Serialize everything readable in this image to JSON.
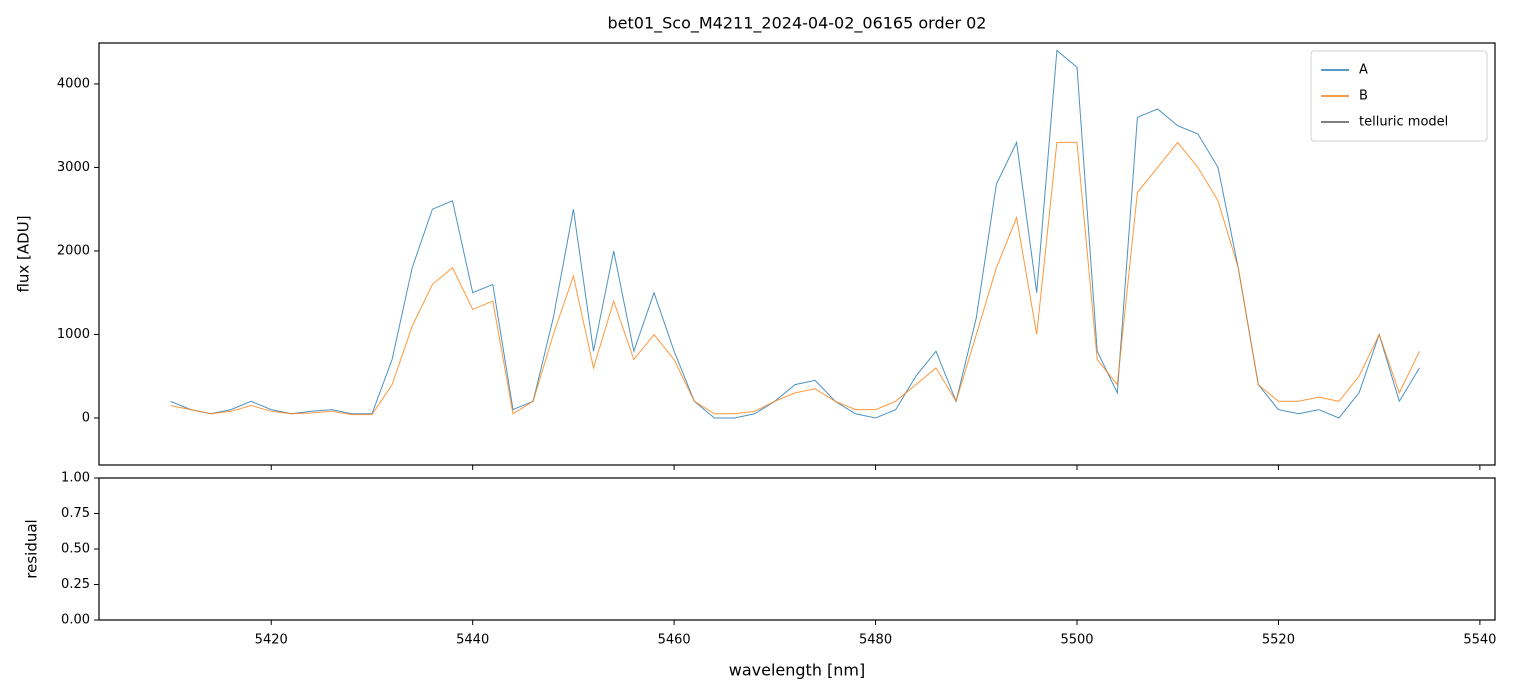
{
  "chart_data": [
    {
      "type": "line",
      "title": "bet01_Sco_M4211_2024-04-02_06165  order 02",
      "ylabel": "flux [ADU]",
      "xlim": [
        5402.9,
        5541.5
      ],
      "ylim": [
        -563,
        4490
      ],
      "yticks": [
        0,
        1000,
        2000,
        3000,
        4000
      ],
      "legend": "upper right",
      "x": [
        5410,
        5412,
        5414,
        5416,
        5418,
        5420,
        5422,
        5424,
        5426,
        5428,
        5430,
        5432,
        5434,
        5436,
        5438,
        5440,
        5442,
        5444,
        5446,
        5448,
        5450,
        5452,
        5454,
        5456,
        5458,
        5460,
        5462,
        5464,
        5466,
        5468,
        5470,
        5472,
        5474,
        5476,
        5478,
        5480,
        5482,
        5484,
        5486,
        5488,
        5490,
        5492,
        5494,
        5496,
        5498,
        5500,
        5502,
        5504,
        5506,
        5508,
        5510,
        5512,
        5514,
        5516,
        5518,
        5520,
        5522,
        5524,
        5526,
        5528,
        5530,
        5532,
        5534
      ],
      "series": [
        {
          "name": "A",
          "color": "#1f77b4",
          "values": [
            200,
            100,
            50,
            100,
            200,
            100,
            50,
            80,
            100,
            50,
            50,
            700,
            1800,
            2500,
            2600,
            1500,
            1600,
            100,
            200,
            1200,
            2500,
            800,
            2000,
            800,
            1500,
            800,
            200,
            0,
            0,
            50,
            200,
            400,
            450,
            200,
            50,
            0,
            100,
            500,
            800,
            200,
            1200,
            2800,
            3300,
            1500,
            4400,
            4200,
            800,
            300,
            3600,
            3700,
            3500,
            3400,
            3000,
            1800,
            400,
            100,
            50,
            100,
            0,
            300,
            1000,
            200,
            600
          ]
        },
        {
          "name": "B",
          "color": "#ff7f0e",
          "values": [
            150,
            100,
            50,
            80,
            150,
            80,
            50,
            60,
            80,
            40,
            40,
            400,
            1100,
            1600,
            1800,
            1300,
            1400,
            50,
            200,
            1000,
            1700,
            600,
            1400,
            700,
            1000,
            700,
            200,
            50,
            50,
            80,
            200,
            300,
            350,
            200,
            100,
            100,
            200,
            400,
            600,
            200,
            1000,
            1800,
            2400,
            1000,
            3300,
            3300,
            700,
            400,
            2700,
            3000,
            3300,
            3000,
            2600,
            1800,
            400,
            200,
            200,
            250,
            200,
            500,
            1000,
            300,
            800
          ]
        },
        {
          "name": "telluric model",
          "color": "#555555",
          "values": [
            null,
            null,
            null,
            null,
            null,
            null,
            null,
            null,
            null,
            null,
            null,
            null,
            null,
            null,
            null,
            null,
            null,
            null,
            null,
            null,
            null,
            null,
            null,
            null,
            null,
            null,
            null,
            null,
            null,
            null,
            null,
            null,
            null,
            null,
            null,
            null,
            null,
            null,
            null,
            null,
            null,
            null,
            null,
            null,
            null,
            null,
            null,
            null,
            null,
            null,
            null,
            null,
            null,
            null,
            null,
            null,
            null,
            null,
            null,
            null,
            null,
            null,
            null
          ]
        }
      ]
    },
    {
      "type": "line",
      "ylabel": "residual",
      "xlabel": "wavelength [nm]",
      "xlim": [
        5402.9,
        5541.5
      ],
      "ylim": [
        0,
        1
      ],
      "xticks": [
        5420,
        5440,
        5460,
        5480,
        5500,
        5520,
        5540
      ],
      "yticks": [
        {
          "value": 0,
          "label": "0.00"
        },
        {
          "value": 0.25,
          "label": "0.25"
        },
        {
          "value": 0.5,
          "label": "0.50"
        },
        {
          "value": 0.75,
          "label": "0.75"
        },
        {
          "value": 1,
          "label": "1.00"
        }
      ]
    }
  ]
}
